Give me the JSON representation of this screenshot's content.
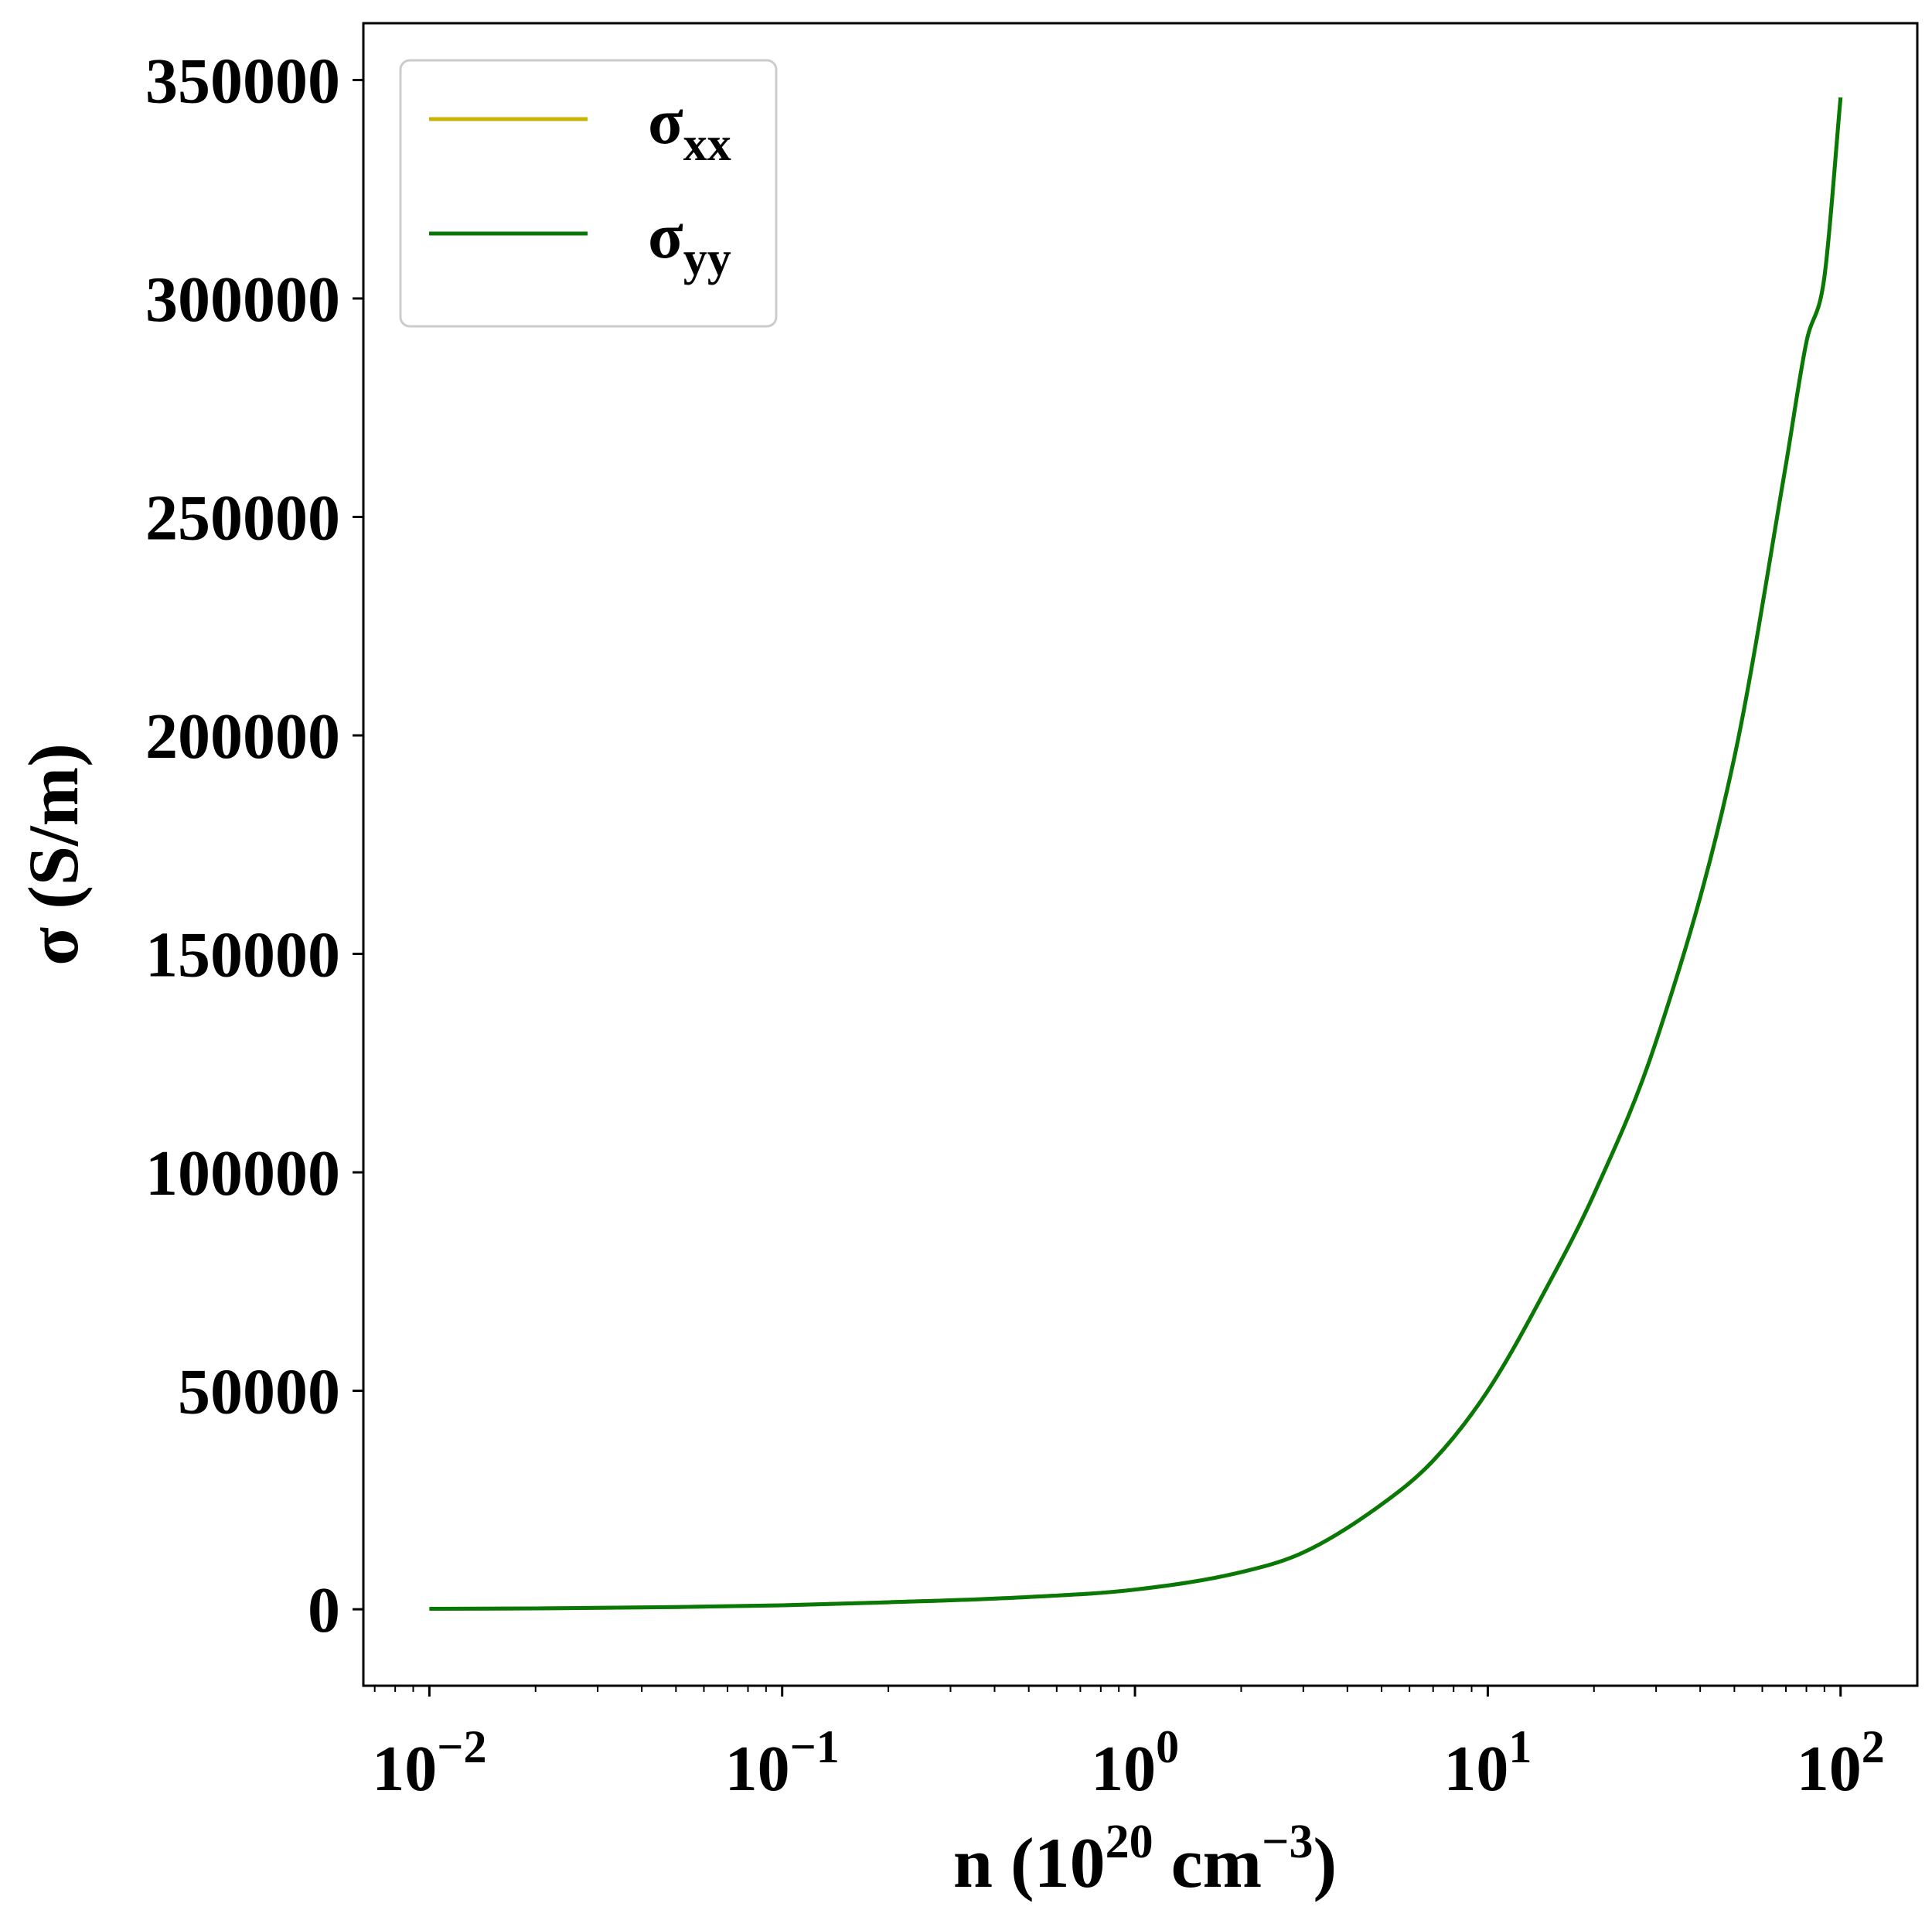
{
  "chart_data": {
    "type": "line",
    "xscale": "log",
    "xlim": [
      0.0065,
      165
    ],
    "ylim": [
      -17500,
      363000
    ],
    "xlabel": {
      "base": "n (10",
      "exp1": "20",
      "mid": " cm",
      "exp2": "−3",
      "end": ")"
    },
    "ylabel": "σ (S/m)",
    "y_ticks": [
      {
        "value": 0,
        "label": "0"
      },
      {
        "value": 50000,
        "label": "50000"
      },
      {
        "value": 100000,
        "label": "100000"
      },
      {
        "value": 150000,
        "label": "150000"
      },
      {
        "value": 200000,
        "label": "200000"
      },
      {
        "value": 250000,
        "label": "250000"
      },
      {
        "value": 300000,
        "label": "300000"
      },
      {
        "value": 350000,
        "label": "350000"
      }
    ],
    "x_ticks": [
      {
        "value": 0.01,
        "base": "10",
        "exp": "−2"
      },
      {
        "value": 0.1,
        "base": "10",
        "exp": "−1"
      },
      {
        "value": 1,
        "base": "10",
        "exp": "0"
      },
      {
        "value": 10,
        "base": "10",
        "exp": "1"
      },
      {
        "value": 100,
        "base": "10",
        "exp": "2"
      }
    ],
    "grid": false,
    "legend_position": "top-left",
    "series": [
      {
        "name": "σ",
        "name_sub": "xx",
        "color": "#c8b400",
        "x": [
          0.01,
          0.02,
          0.05,
          0.1,
          0.2,
          0.5,
          1,
          2,
          3,
          5,
          7,
          10,
          15,
          20,
          30,
          50,
          70,
          80,
          90,
          100
        ],
        "y": [
          100,
          200,
          500,
          900,
          1600,
          2800,
          4500,
          8500,
          13000,
          24000,
          34000,
          50000,
          75000,
          95000,
          130000,
          195000,
          262000,
          290000,
          305000,
          346000
        ]
      },
      {
        "name": "σ",
        "name_sub": "yy",
        "color": "#087808",
        "x": [
          0.01,
          0.02,
          0.05,
          0.1,
          0.2,
          0.5,
          1,
          2,
          3,
          5,
          7,
          10,
          15,
          20,
          30,
          50,
          70,
          80,
          90,
          100
        ],
        "y": [
          100,
          200,
          500,
          900,
          1600,
          2800,
          4500,
          8500,
          13000,
          24000,
          34000,
          50000,
          75000,
          95000,
          130000,
          195000,
          262000,
          290000,
          305000,
          346000
        ]
      }
    ]
  }
}
